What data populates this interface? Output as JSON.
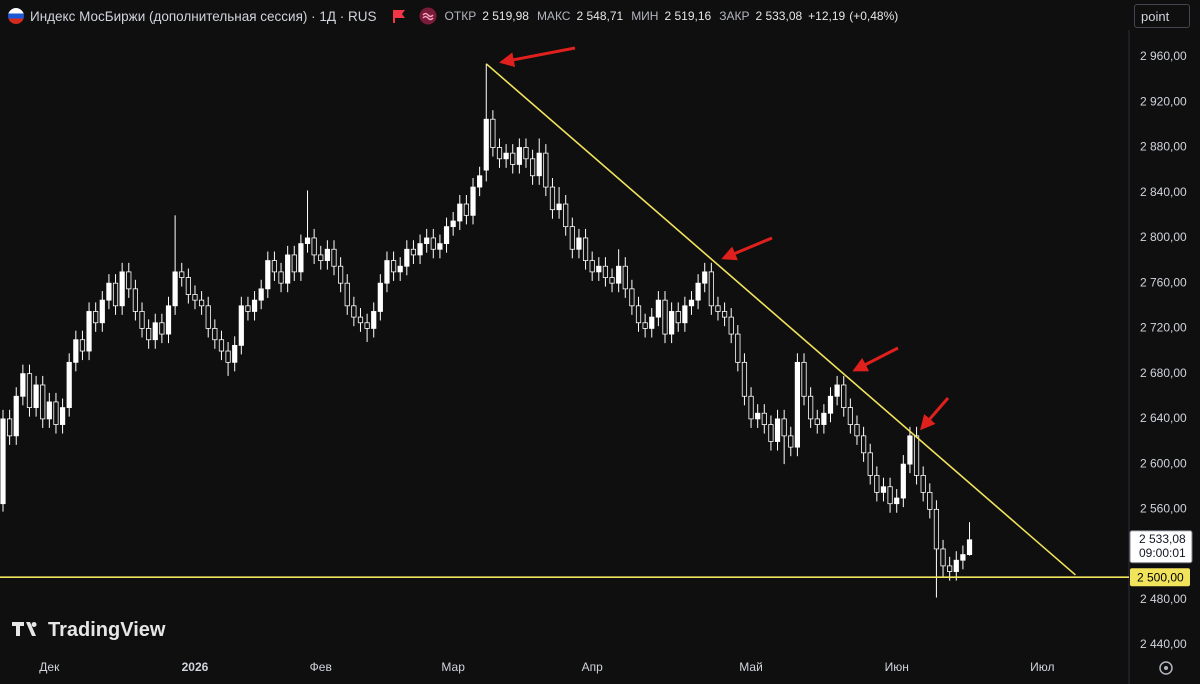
{
  "header": {
    "title": "Индекс МосБиржи (дополнительная сессия) · 1Д · RUS",
    "open_label": "ОТКР",
    "open": "2 519,98",
    "high_label": "МАКС",
    "high": "2 548,71",
    "low_label": "МИН",
    "low": "2 519,16",
    "close_label": "ЗАКР",
    "close": "2 533,08",
    "change": "+12,19",
    "change_pct": "(+0,48%)"
  },
  "button": "point",
  "logo": "TradingView",
  "chart_data": {
    "type": "candlestick",
    "categories": [
      null,
      null,
      null,
      null,
      null,
      null,
      null,
      "Дек",
      null,
      null,
      null,
      null,
      null,
      null,
      null,
      null,
      null,
      null,
      null,
      null,
      null,
      null,
      null,
      null,
      null,
      null,
      null,
      null,
      null,
      "2026",
      null,
      null,
      null,
      null,
      null,
      null,
      null,
      null,
      null,
      null,
      null,
      null,
      null,
      null,
      null,
      null,
      null,
      null,
      "Фев",
      null,
      null,
      null,
      null,
      null,
      null,
      null,
      null,
      null,
      null,
      null,
      null,
      null,
      null,
      null,
      null,
      null,
      null,
      null,
      "Мар",
      null,
      null,
      null,
      null,
      null,
      null,
      null,
      null,
      null,
      null,
      null,
      null,
      null,
      null,
      null,
      null,
      null,
      null,
      null,
      null,
      "Апр",
      null,
      null,
      null,
      null,
      null,
      null,
      null,
      null,
      null,
      null,
      null,
      null,
      null,
      null,
      null,
      null,
      null,
      null,
      null,
      null,
      null,
      null,
      null,
      "Май",
      null,
      null,
      null,
      null,
      null,
      null,
      null,
      null,
      null,
      null,
      null,
      null,
      null,
      null,
      null,
      null,
      null,
      null,
      null,
      null,
      null,
      "Июн",
      null,
      null,
      null,
      null,
      null,
      null,
      null,
      null,
      null,
      null,
      null,
      null,
      null,
      null,
      null,
      null,
      null,
      null,
      null,
      null,
      null,
      "Июл",
      null,
      null,
      null,
      null,
      null,
      null,
      null,
      null,
      null,
      null,
      null,
      null
    ],
    "series": [
      {
        "up_color": "#ffffff",
        "down_color": "#0f0f0f",
        "wick_color": "#ffffff",
        "open": [
          2565,
          2640,
          2625,
          2660,
          2680,
          2650,
          2670,
          2640,
          2655,
          2635,
          2650,
          2690,
          2710,
          2700,
          2735,
          2725,
          2745,
          2760,
          2740,
          2770,
          2755,
          2735,
          2720,
          2710,
          2725,
          2715,
          2740,
          2770,
          2765,
          2750,
          2745,
          2740,
          2720,
          2710,
          2700,
          2690,
          2705,
          2740,
          2735,
          2745,
          2755,
          2780,
          2770,
          2760,
          2785,
          2770,
          2795,
          2800,
          2785,
          2780,
          2790,
          2775,
          2760,
          2740,
          2730,
          2725,
          2720,
          2735,
          2760,
          2780,
          2770,
          2775,
          2790,
          2785,
          2795,
          2800,
          2790,
          2795,
          2810,
          2815,
          2830,
          2820,
          2845,
          2860,
          2905,
          2880,
          2870,
          2875,
          2865,
          2880,
          2870,
          2855,
          2875,
          2845,
          2825,
          2830,
          2810,
          2790,
          2800,
          2780,
          2770,
          2775,
          2765,
          2760,
          2775,
          2755,
          2740,
          2725,
          2720,
          2730,
          2745,
          2715,
          2735,
          2725,
          2740,
          2745,
          2760,
          2770,
          2740,
          2735,
          2730,
          2715,
          2690,
          2660,
          2640,
          2645,
          2635,
          2620,
          2640,
          2625,
          2615,
          2690,
          2660,
          2640,
          2635,
          2645,
          2660,
          2670,
          2650,
          2635,
          2625,
          2610,
          2590,
          2575,
          2580,
          2565,
          2570,
          2600,
          2625,
          2590,
          2575,
          2560,
          2525,
          2510,
          2505,
          2515,
          2519.98,
          null,
          null,
          null,
          null,
          null,
          null,
          null,
          null,
          null,
          null,
          null,
          null,
          null,
          null,
          null,
          null,
          null,
          null,
          null,
          null,
          null,
          null,
          null
        ],
        "high": [
          2648,
          2648,
          2668,
          2688,
          2688,
          2678,
          2678,
          2663,
          2663,
          2658,
          2698,
          2718,
          2718,
          2743,
          2743,
          2753,
          2768,
          2768,
          2778,
          2778,
          2763,
          2743,
          2728,
          2733,
          2733,
          2748,
          2820,
          2778,
          2773,
          2758,
          2753,
          2748,
          2728,
          2718,
          2708,
          2713,
          2748,
          2748,
          2753,
          2763,
          2788,
          2788,
          2778,
          2793,
          2793,
          2803,
          2842,
          2808,
          2793,
          2798,
          2798,
          2783,
          2768,
          2748,
          2738,
          2733,
          2743,
          2768,
          2788,
          2788,
          2783,
          2798,
          2798,
          2803,
          2808,
          2808,
          2803,
          2818,
          2823,
          2838,
          2838,
          2853,
          2863,
          2954,
          2913,
          2888,
          2883,
          2883,
          2888,
          2888,
          2878,
          2888,
          2883,
          2853,
          2845,
          2838,
          2818,
          2808,
          2808,
          2788,
          2783,
          2783,
          2773,
          2790,
          2783,
          2763,
          2748,
          2733,
          2738,
          2753,
          2753,
          2743,
          2743,
          2748,
          2753,
          2768,
          2778,
          2778,
          2748,
          2743,
          2738,
          2723,
          2698,
          2668,
          2653,
          2653,
          2643,
          2648,
          2648,
          2633,
          2698,
          2698,
          2668,
          2648,
          2653,
          2668,
          2678,
          2678,
          2658,
          2643,
          2633,
          2618,
          2598,
          2588,
          2588,
          2578,
          2608,
          2633,
          2633,
          2598,
          2583,
          2568,
          2533,
          2518,
          2523,
          2528,
          2548.71,
          null,
          null,
          null,
          null,
          null,
          null,
          null,
          null,
          null,
          null,
          null,
          null,
          null,
          null,
          null,
          null,
          null,
          null,
          null,
          null,
          null,
          null,
          null
        ],
        "low": [
          2558,
          2617,
          2617,
          2652,
          2642,
          2642,
          2632,
          2632,
          2627,
          2627,
          2642,
          2682,
          2692,
          2692,
          2717,
          2717,
          2737,
          2732,
          2732,
          2747,
          2727,
          2712,
          2702,
          2702,
          2707,
          2707,
          2732,
          2757,
          2742,
          2737,
          2732,
          2712,
          2702,
          2692,
          2678,
          2682,
          2697,
          2727,
          2727,
          2737,
          2747,
          2762,
          2752,
          2752,
          2762,
          2762,
          2787,
          2777,
          2772,
          2772,
          2767,
          2752,
          2732,
          2722,
          2717,
          2708,
          2712,
          2727,
          2752,
          2762,
          2762,
          2767,
          2777,
          2777,
          2787,
          2782,
          2782,
          2787,
          2802,
          2807,
          2812,
          2812,
          2837,
          2850,
          2872,
          2862,
          2862,
          2857,
          2857,
          2862,
          2847,
          2847,
          2837,
          2817,
          2817,
          2802,
          2782,
          2782,
          2772,
          2762,
          2762,
          2757,
          2752,
          2752,
          2747,
          2732,
          2717,
          2712,
          2712,
          2722,
          2707,
          2707,
          2717,
          2717,
          2732,
          2737,
          2752,
          2732,
          2727,
          2722,
          2707,
          2682,
          2652,
          2632,
          2632,
          2627,
          2612,
          2612,
          2600,
          2607,
          2607,
          2652,
          2632,
          2627,
          2627,
          2637,
          2652,
          2642,
          2627,
          2617,
          2602,
          2582,
          2567,
          2567,
          2557,
          2557,
          2562,
          2592,
          2582,
          2567,
          2552,
          2482,
          2500,
          2497,
          2497,
          2507,
          2519.16,
          null,
          null,
          null,
          null,
          null,
          null,
          null,
          null,
          null,
          null,
          null,
          null,
          null,
          null,
          null,
          null,
          null,
          null,
          null,
          null,
          null,
          null,
          null
        ],
        "close": [
          2640,
          2625,
          2660,
          2680,
          2650,
          2670,
          2640,
          2655,
          2635,
          2650,
          2690,
          2710,
          2700,
          2735,
          2725,
          2745,
          2760,
          2740,
          2770,
          2755,
          2735,
          2720,
          2710,
          2725,
          2715,
          2740,
          2770,
          2765,
          2750,
          2745,
          2740,
          2720,
          2710,
          2700,
          2690,
          2705,
          2740,
          2735,
          2745,
          2755,
          2780,
          2770,
          2760,
          2785,
          2770,
          2795,
          2800,
          2785,
          2780,
          2790,
          2775,
          2760,
          2740,
          2730,
          2725,
          2720,
          2735,
          2760,
          2780,
          2770,
          2775,
          2790,
          2785,
          2795,
          2800,
          2790,
          2795,
          2810,
          2815,
          2830,
          2820,
          2845,
          2855,
          2905,
          2880,
          2870,
          2875,
          2865,
          2880,
          2870,
          2855,
          2875,
          2845,
          2825,
          2830,
          2810,
          2790,
          2800,
          2780,
          2770,
          2775,
          2765,
          2760,
          2775,
          2755,
          2740,
          2725,
          2720,
          2730,
          2745,
          2715,
          2735,
          2725,
          2740,
          2745,
          2760,
          2770,
          2740,
          2735,
          2730,
          2715,
          2690,
          2660,
          2640,
          2645,
          2635,
          2620,
          2640,
          2625,
          2615,
          2690,
          2660,
          2640,
          2635,
          2645,
          2660,
          2670,
          2650,
          2635,
          2625,
          2610,
          2590,
          2575,
          2580,
          2565,
          2570,
          2600,
          2625,
          2590,
          2575,
          2560,
          2525,
          2510,
          2505,
          2515,
          2520,
          2533.08,
          null,
          null,
          null,
          null,
          null,
          null,
          null,
          null,
          null,
          null,
          null,
          null,
          null,
          null,
          null,
          null,
          null,
          null,
          null,
          null,
          null,
          null,
          null
        ]
      }
    ],
    "ylim": [
      2431.2,
      2983.9
    ],
    "yticks": [
      {
        "value": 2960,
        "label": "2 960,00"
      },
      {
        "value": 2920,
        "label": "2 920,00"
      },
      {
        "value": 2880,
        "label": "2 880,00"
      },
      {
        "value": 2840,
        "label": "2 840,00"
      },
      {
        "value": 2800,
        "label": "2 800,00"
      },
      {
        "value": 2760,
        "label": "2 760,00"
      },
      {
        "value": 2720,
        "label": "2 720,00"
      },
      {
        "value": 2680,
        "label": "2 680,00"
      },
      {
        "value": 2640,
        "label": "2 640,00"
      },
      {
        "value": 2600,
        "label": "2 600,00"
      },
      {
        "value": 2560,
        "label": "2 560,00"
      },
      {
        "value": 2480,
        "label": "2 480,00"
      },
      {
        "value": 2440,
        "label": "2 440,00"
      }
    ],
    "last_price": {
      "value": 2533.08,
      "label": "2 533,08"
    },
    "countdown": "09:00:01",
    "hline": {
      "value": 2500,
      "label": "2 500,00",
      "color": "#f2e35c"
    },
    "trendline": {
      "x": [
        73,
        162
      ],
      "y": [
        2954,
        2502
      ],
      "color": "#f2e35c"
    }
  }
}
